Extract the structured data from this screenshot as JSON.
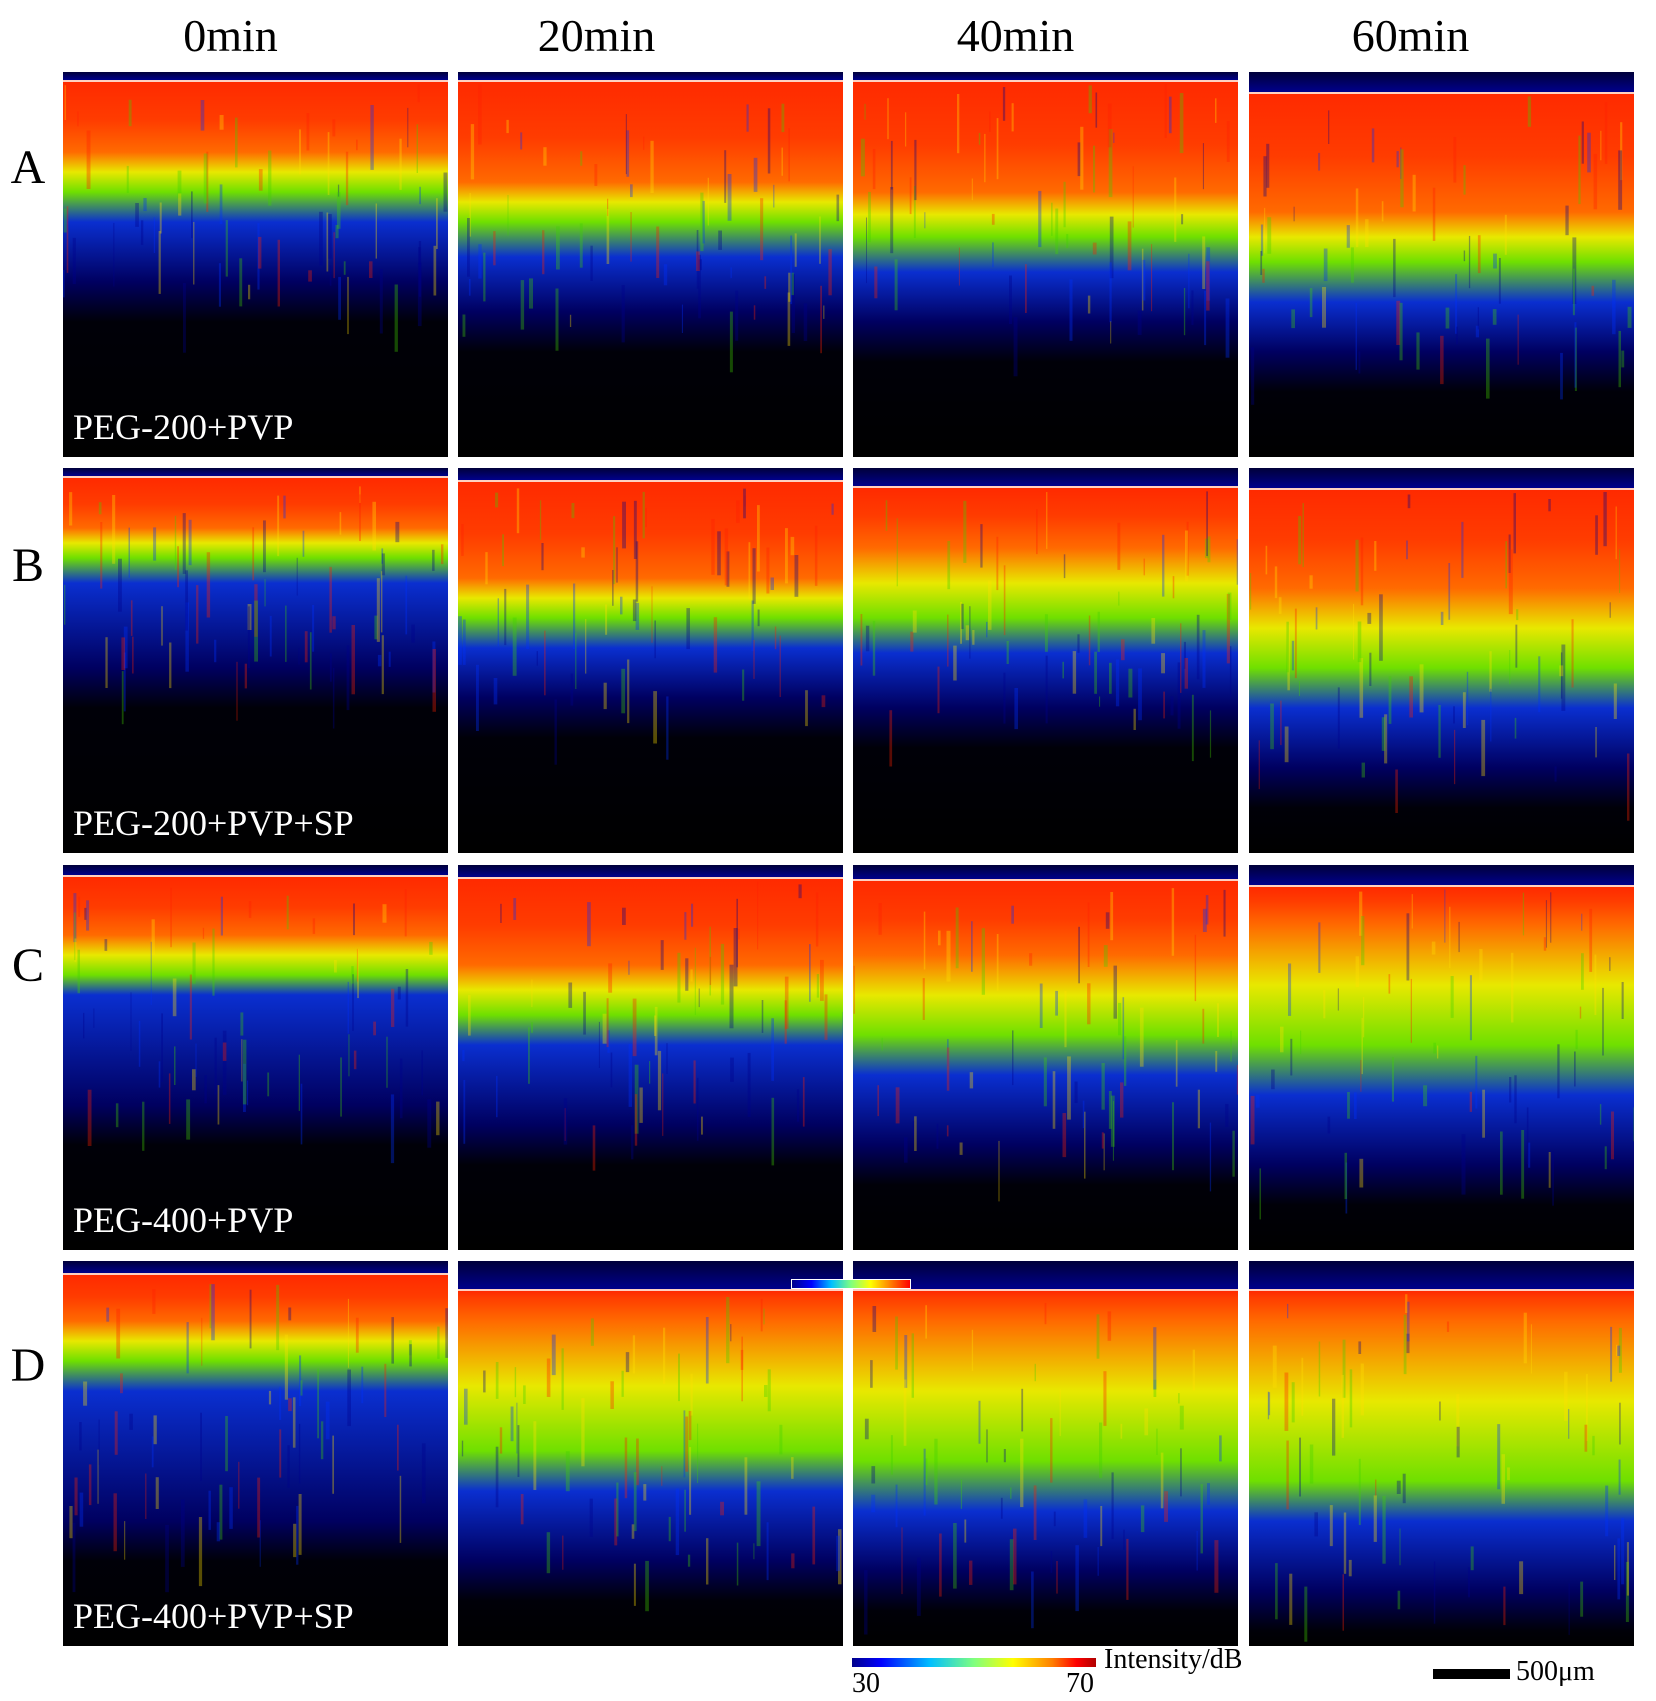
{
  "columns": [
    "0min",
    "20min",
    "40min",
    "60min"
  ],
  "rows": [
    {
      "label": "A",
      "sample": "PEG-200+PVP"
    },
    {
      "label": "B",
      "sample": "PEG-200+PVP+SP"
    },
    {
      "label": "C",
      "sample": "PEG-400+PVP"
    },
    {
      "label": "D",
      "sample": "PEG-400+PVP+SP"
    }
  ],
  "colorbar": {
    "min": "30",
    "max": "70",
    "title": "Intensity/dB"
  },
  "scalebar": {
    "label": "500μm"
  },
  "colors": {
    "background": "#000000",
    "deep_blue": "#00008b",
    "green": "#7fff00",
    "yellow": "#ffff00",
    "red": "#ff3000"
  }
}
